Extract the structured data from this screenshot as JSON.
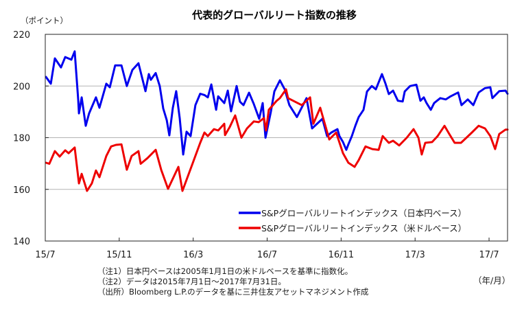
{
  "chart_data": {
    "type": "line",
    "title": "代表的グローバルリート指数の推移",
    "ylabel": "（ポイント）",
    "xlabel": "（年/月）",
    "ylim": [
      140,
      220
    ],
    "yticks": [
      140,
      160,
      180,
      200,
      220
    ],
    "grid": true,
    "x_unit": "months since 2015/7/1",
    "xlim": [
      0,
      25
    ],
    "xticks": [
      {
        "x": 0,
        "label": "15/7"
      },
      {
        "x": 4,
        "label": "15/11"
      },
      {
        "x": 8,
        "label": "16/3"
      },
      {
        "x": 12,
        "label": "16/7"
      },
      {
        "x": 16,
        "label": "16/11"
      },
      {
        "x": 20,
        "label": "17/3"
      },
      {
        "x": 24,
        "label": "17/7"
      }
    ],
    "legend_position": "bottom-right",
    "series": [
      {
        "name": "S&Pグローバルリートインデックス（日本円ベース）",
        "color": "#0000ee",
        "points": [
          [
            0.04,
            203.5
          ],
          [
            0.3,
            200.9
          ],
          [
            0.52,
            210.7
          ],
          [
            0.85,
            207.2
          ],
          [
            1.08,
            211.2
          ],
          [
            1.41,
            210.2
          ],
          [
            1.59,
            213.4
          ],
          [
            1.78,
            194.8
          ],
          [
            1.82,
            189.4
          ],
          [
            1.97,
            195.6
          ],
          [
            2.19,
            184.6
          ],
          [
            2.37,
            189.4
          ],
          [
            2.74,
            195.6
          ],
          [
            2.93,
            191.6
          ],
          [
            3.3,
            200.9
          ],
          [
            3.49,
            199.5
          ],
          [
            3.78,
            208.0
          ],
          [
            4.12,
            208.0
          ],
          [
            4.41,
            200.0
          ],
          [
            4.71,
            206.2
          ],
          [
            5.04,
            208.8
          ],
          [
            5.16,
            205.4
          ],
          [
            5.42,
            198.0
          ],
          [
            5.6,
            204.6
          ],
          [
            5.71,
            202.4
          ],
          [
            5.97,
            205.0
          ],
          [
            6.19,
            200.0
          ],
          [
            6.38,
            191.3
          ],
          [
            6.57,
            186.8
          ],
          [
            6.71,
            180.9
          ],
          [
            6.9,
            191.6
          ],
          [
            7.08,
            198.0
          ],
          [
            7.27,
            187.6
          ],
          [
            7.46,
            173.5
          ],
          [
            7.64,
            182.3
          ],
          [
            7.86,
            180.6
          ],
          [
            8.12,
            192.6
          ],
          [
            8.38,
            197.0
          ],
          [
            8.61,
            196.5
          ],
          [
            8.79,
            195.6
          ],
          [
            8.98,
            200.6
          ],
          [
            9.24,
            190.8
          ],
          [
            9.35,
            196.0
          ],
          [
            9.68,
            193.4
          ],
          [
            9.87,
            198.2
          ],
          [
            10.05,
            190.2
          ],
          [
            10.35,
            200.0
          ],
          [
            10.53,
            193.9
          ],
          [
            10.72,
            192.6
          ],
          [
            11.02,
            197.4
          ],
          [
            11.28,
            193.0
          ],
          [
            11.57,
            187.3
          ],
          [
            11.76,
            193.4
          ],
          [
            11.91,
            180.0
          ],
          [
            12.2,
            190.0
          ],
          [
            12.39,
            197.9
          ],
          [
            12.69,
            202.2
          ],
          [
            12.95,
            198.7
          ],
          [
            13.2,
            192.6
          ],
          [
            13.61,
            188.0
          ],
          [
            14.13,
            195.3
          ],
          [
            14.43,
            183.6
          ],
          [
            14.99,
            187.3
          ],
          [
            15.24,
            180.6
          ],
          [
            15.47,
            182.0
          ],
          [
            15.8,
            183.3
          ],
          [
            15.91,
            180.6
          ],
          [
            16.1,
            178.3
          ],
          [
            16.28,
            175.3
          ],
          [
            16.39,
            177.4
          ],
          [
            16.58,
            180.6
          ],
          [
            16.77,
            184.6
          ],
          [
            16.95,
            188.0
          ],
          [
            17.21,
            190.8
          ],
          [
            17.4,
            197.9
          ],
          [
            17.66,
            200.0
          ],
          [
            17.88,
            198.7
          ],
          [
            18.21,
            204.6
          ],
          [
            18.4,
            200.9
          ],
          [
            18.58,
            196.9
          ],
          [
            18.81,
            198.2
          ],
          [
            19.07,
            194.3
          ],
          [
            19.33,
            194.0
          ],
          [
            19.44,
            197.9
          ],
          [
            19.73,
            200.0
          ],
          [
            20.07,
            200.5
          ],
          [
            20.29,
            194.3
          ],
          [
            20.47,
            195.6
          ],
          [
            20.62,
            193.4
          ],
          [
            20.85,
            190.8
          ],
          [
            21.03,
            193.4
          ],
          [
            21.36,
            195.3
          ],
          [
            21.66,
            194.8
          ],
          [
            21.92,
            196.0
          ],
          [
            22.33,
            197.5
          ],
          [
            22.51,
            192.6
          ],
          [
            22.85,
            194.8
          ],
          [
            23.15,
            192.6
          ],
          [
            23.44,
            197.5
          ],
          [
            23.78,
            199.2
          ],
          [
            24.07,
            199.5
          ],
          [
            24.18,
            195.3
          ],
          [
            24.55,
            198.0
          ],
          [
            24.89,
            198.2
          ],
          [
            25.0,
            197.0
          ]
        ]
      },
      {
        "name": "S&Pグローバルリートインデックス（米ドルベース）",
        "color": "#ee0000",
        "points": [
          [
            0.04,
            170.3
          ],
          [
            0.22,
            169.9
          ],
          [
            0.52,
            174.8
          ],
          [
            0.78,
            172.7
          ],
          [
            1.08,
            175.1
          ],
          [
            1.26,
            174.0
          ],
          [
            1.59,
            176.2
          ],
          [
            1.82,
            162.3
          ],
          [
            1.97,
            166.0
          ],
          [
            2.26,
            159.4
          ],
          [
            2.52,
            162.3
          ],
          [
            2.74,
            167.3
          ],
          [
            2.93,
            164.7
          ],
          [
            3.3,
            172.9
          ],
          [
            3.56,
            176.6
          ],
          [
            3.82,
            177.2
          ],
          [
            4.12,
            177.4
          ],
          [
            4.41,
            167.6
          ],
          [
            4.67,
            172.9
          ],
          [
            5.04,
            174.8
          ],
          [
            5.16,
            169.9
          ],
          [
            5.53,
            172.1
          ],
          [
            5.97,
            175.3
          ],
          [
            6.27,
            167.6
          ],
          [
            6.64,
            160.2
          ],
          [
            7.2,
            168.7
          ],
          [
            7.42,
            159.4
          ],
          [
            7.94,
            169.5
          ],
          [
            8.38,
            178.0
          ],
          [
            8.61,
            182.0
          ],
          [
            8.79,
            180.6
          ],
          [
            9.12,
            183.3
          ],
          [
            9.35,
            182.8
          ],
          [
            9.68,
            185.4
          ],
          [
            9.72,
            181.0
          ],
          [
            9.98,
            184.2
          ],
          [
            10.27,
            188.6
          ],
          [
            10.61,
            180.0
          ],
          [
            10.91,
            183.6
          ],
          [
            11.28,
            186.3
          ],
          [
            11.54,
            186.0
          ],
          [
            11.83,
            187.6
          ],
          [
            11.94,
            182.8
          ],
          [
            12.09,
            190.8
          ],
          [
            12.31,
            192.6
          ],
          [
            12.5,
            194.2
          ],
          [
            12.69,
            195.3
          ],
          [
            13.02,
            198.7
          ],
          [
            13.13,
            195.3
          ],
          [
            13.87,
            192.6
          ],
          [
            14.32,
            195.6
          ],
          [
            14.5,
            185.4
          ],
          [
            14.87,
            191.6
          ],
          [
            15.36,
            179.3
          ],
          [
            15.73,
            182.0
          ],
          [
            16.1,
            174.0
          ],
          [
            16.39,
            170.3
          ],
          [
            16.73,
            168.7
          ],
          [
            16.95,
            171.3
          ],
          [
            17.32,
            176.6
          ],
          [
            17.69,
            175.6
          ],
          [
            18.03,
            175.3
          ],
          [
            18.25,
            180.6
          ],
          [
            18.58,
            178.0
          ],
          [
            18.81,
            178.8
          ],
          [
            19.14,
            177.0
          ],
          [
            19.55,
            180.0
          ],
          [
            19.92,
            183.3
          ],
          [
            20.18,
            180.0
          ],
          [
            20.36,
            173.5
          ],
          [
            20.55,
            178.0
          ],
          [
            20.92,
            178.3
          ],
          [
            21.22,
            180.6
          ],
          [
            21.59,
            184.6
          ],
          [
            21.85,
            181.4
          ],
          [
            22.14,
            178.0
          ],
          [
            22.48,
            178.0
          ],
          [
            22.78,
            180.0
          ],
          [
            23.07,
            182.0
          ],
          [
            23.44,
            184.6
          ],
          [
            23.78,
            183.6
          ],
          [
            24.07,
            180.6
          ],
          [
            24.33,
            175.6
          ],
          [
            24.55,
            181.4
          ],
          [
            24.89,
            183.1
          ],
          [
            25.0,
            183.1
          ]
        ]
      }
    ]
  },
  "notes": [
    "（注1）日本円ベースは2005年1月1日の米ドルベースを基準に指数化。",
    "（注2）データは2015年7月1日～2017年7月31日。",
    "（出所）Bloomberg L.P.のデータを基に三井住友アセットマネジメント作成"
  ]
}
